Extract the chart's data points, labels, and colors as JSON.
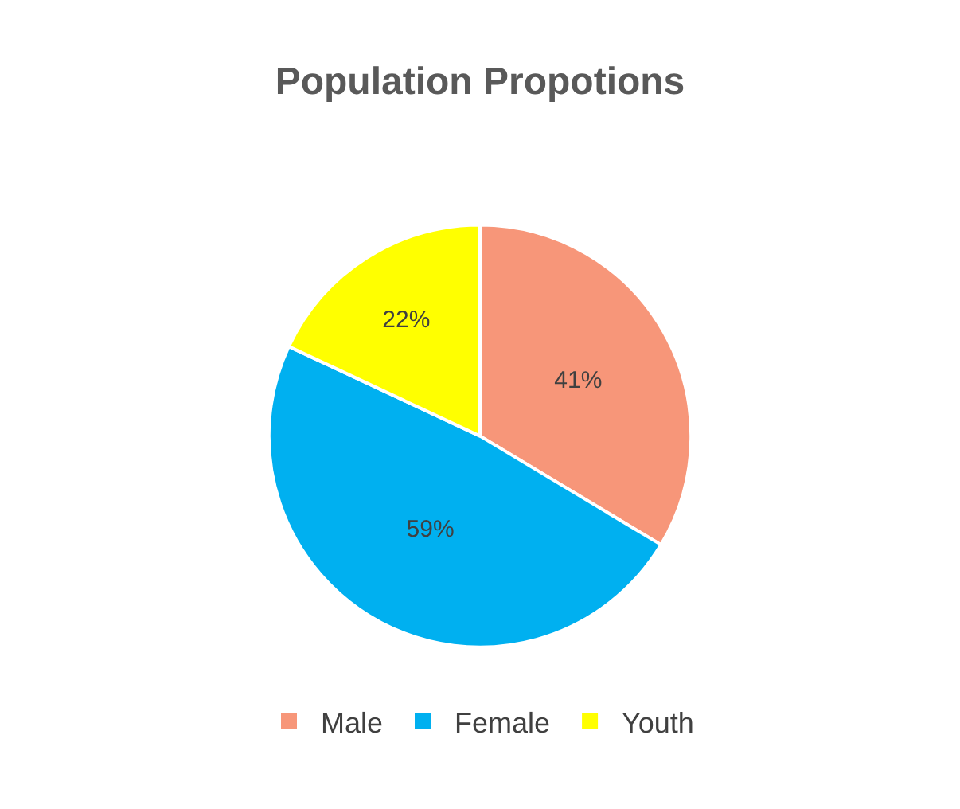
{
  "chart_data": {
    "type": "pie",
    "title": "Population Propotions",
    "categories": [
      "Male",
      "Female",
      "Youth"
    ],
    "values": [
      41,
      59,
      22
    ],
    "value_labels": [
      "41%",
      "59%",
      "22%"
    ],
    "colors": [
      "#f79679",
      "#00b0f0",
      "#ffff00"
    ],
    "legend": "bottom"
  }
}
